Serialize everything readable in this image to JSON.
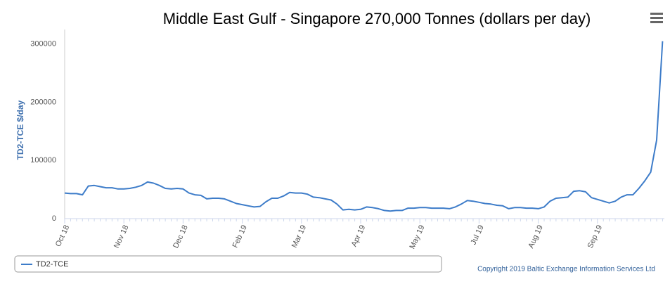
{
  "chart_data": {
    "type": "line",
    "title": "Middle East Gulf - Singapore 270,000 Tonnes (dollars per day)",
    "y_label": "TD2-TCE $/day",
    "credits": "Copyright 2019 Baltic Exchange Information Services Ltd",
    "categories": [
      "Oct 18",
      null,
      null,
      null,
      null,
      null,
      null,
      null,
      null,
      null,
      "Nov 18",
      null,
      null,
      null,
      null,
      null,
      null,
      null,
      null,
      null,
      "Dec 18",
      null,
      null,
      null,
      null,
      null,
      null,
      null,
      null,
      null,
      "Feb 19",
      null,
      null,
      null,
      null,
      null,
      null,
      null,
      null,
      null,
      "Mar 19",
      null,
      null,
      null,
      null,
      null,
      null,
      null,
      null,
      null,
      "Apr 19",
      null,
      null,
      null,
      null,
      null,
      null,
      null,
      null,
      null,
      "May 19",
      null,
      null,
      null,
      null,
      null,
      null,
      null,
      null,
      null,
      "Jul 19",
      null,
      null,
      null,
      null,
      null,
      null,
      null,
      null,
      null,
      "Aug 19",
      null,
      null,
      null,
      null,
      null,
      null,
      null,
      null,
      null,
      "Sep 19",
      null,
      null,
      null,
      null,
      null,
      null,
      null,
      null,
      null,
      null,
      null
    ],
    "series": [
      {
        "name": "TD2-TCE",
        "color": "#3d7cc9",
        "values": [
          44000,
          43000,
          43000,
          41000,
          56000,
          57000,
          55000,
          53000,
          53000,
          51000,
          51000,
          52000,
          54000,
          57000,
          63000,
          61000,
          57000,
          52000,
          51000,
          52000,
          51000,
          44000,
          41000,
          40000,
          34000,
          35000,
          35000,
          34000,
          30000,
          26000,
          24000,
          22000,
          20000,
          21000,
          29000,
          35000,
          35000,
          39000,
          45000,
          44000,
          44000,
          42000,
          37000,
          36000,
          34000,
          32000,
          25000,
          15000,
          16000,
          15000,
          16000,
          20000,
          19000,
          17000,
          14000,
          13000,
          14000,
          14000,
          18000,
          18000,
          19000,
          19000,
          18000,
          18000,
          18000,
          17000,
          20000,
          25000,
          31000,
          30000,
          28000,
          26000,
          25000,
          23000,
          22000,
          17000,
          19000,
          19000,
          18000,
          18000,
          17000,
          20000,
          30000,
          35000,
          36000,
          37000,
          47000,
          48000,
          46000,
          36000,
          33000,
          30000,
          27000,
          30000,
          37000,
          41000,
          41000,
          52000,
          65000,
          80000,
          135000,
          305000
        ]
      }
    ],
    "ylim": [
      0,
      325000
    ],
    "yticks": [
      0,
      100000,
      200000,
      300000
    ],
    "grid": false
  }
}
